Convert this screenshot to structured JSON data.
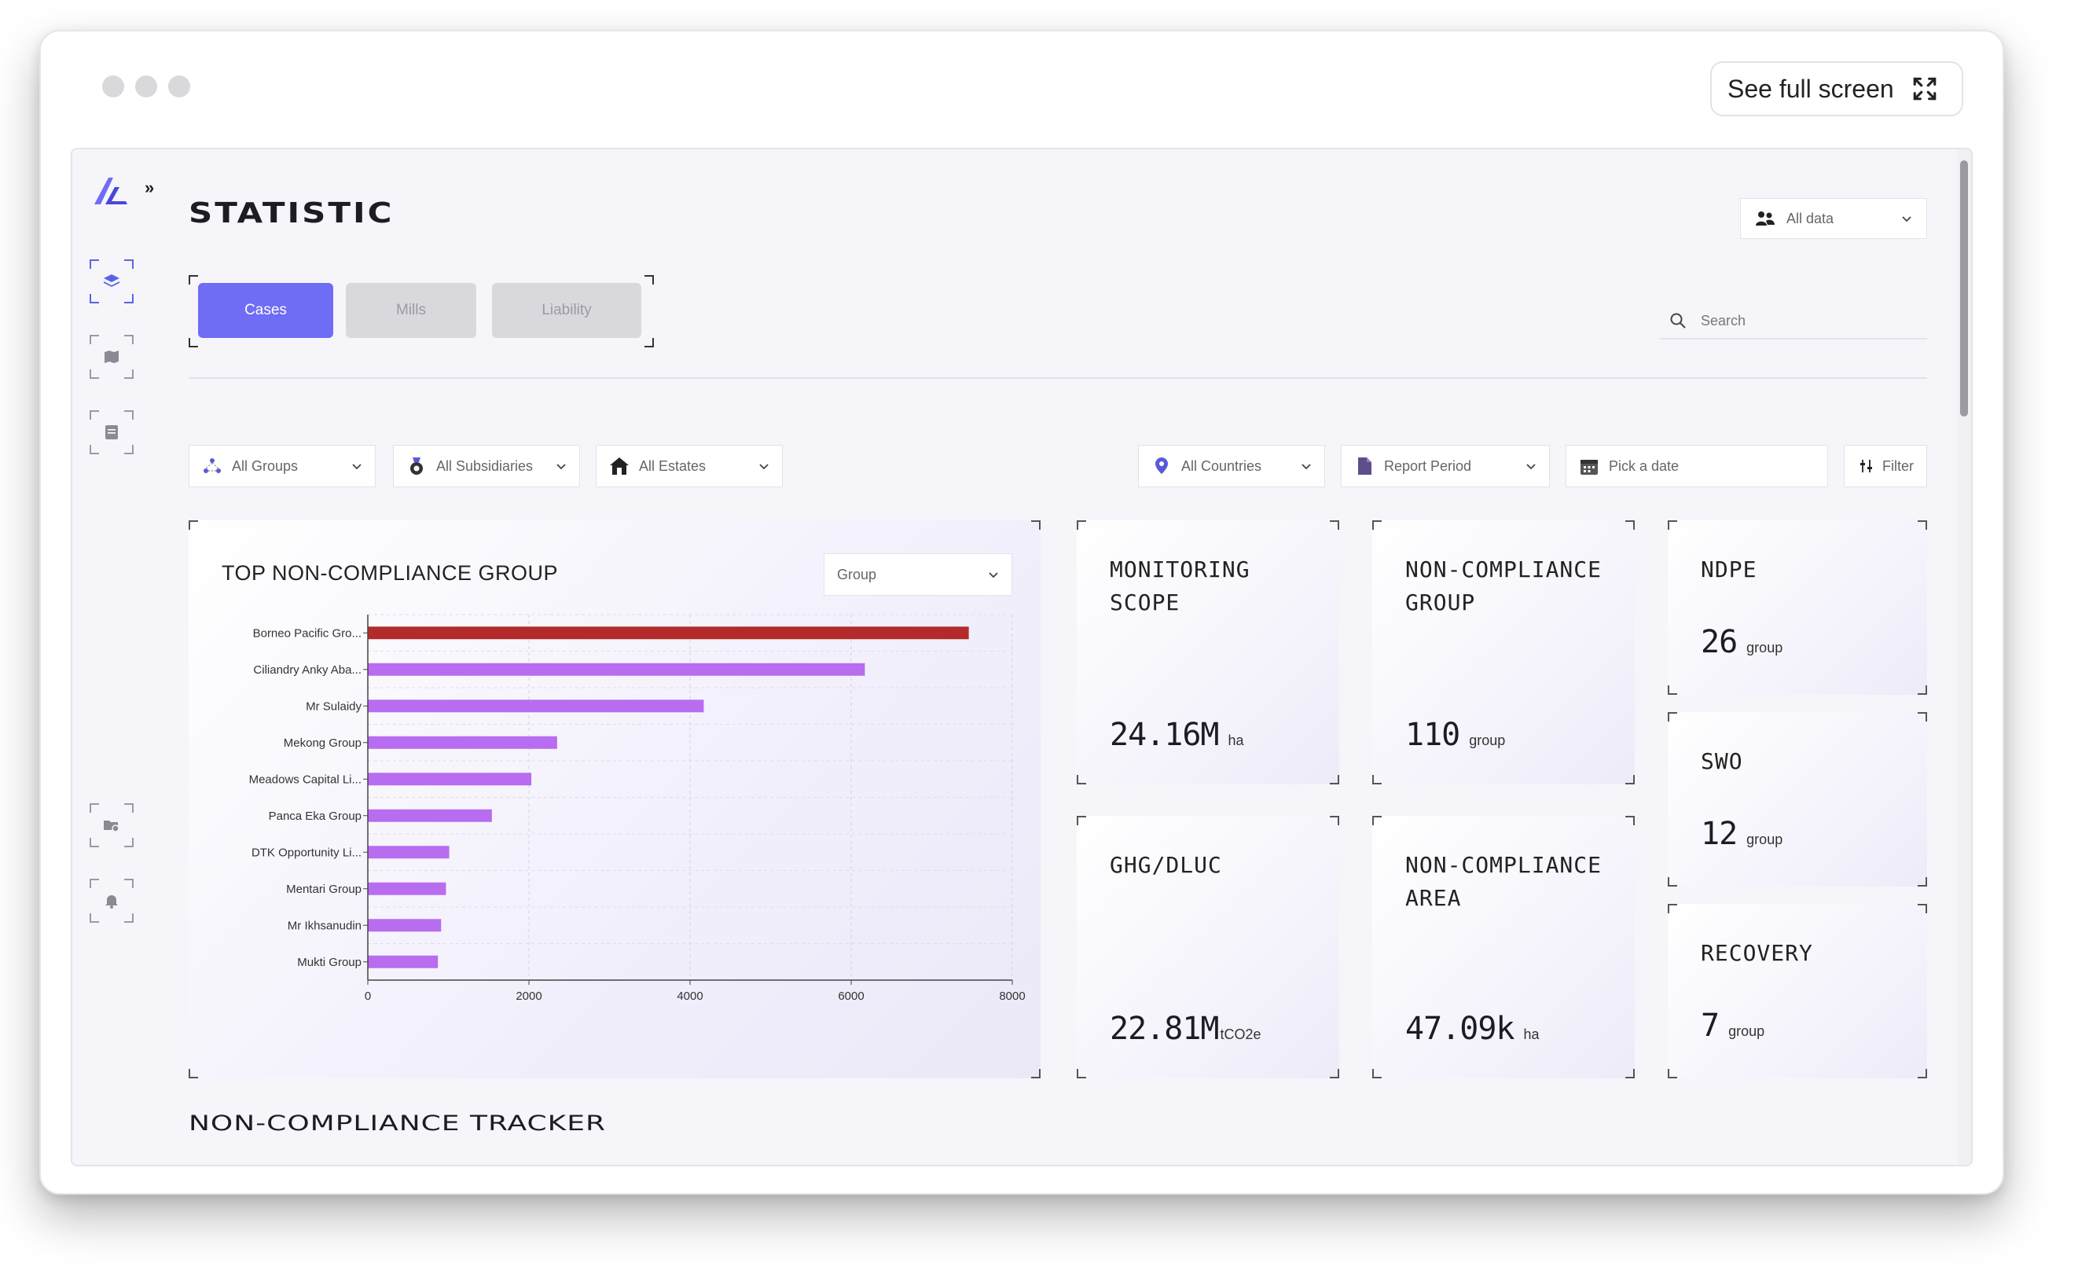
{
  "window": {
    "fullscreen_label": "See full screen"
  },
  "header": {
    "title": "STATISTIC",
    "data_scope": "All data"
  },
  "tabs": [
    {
      "label": "Cases",
      "active": true
    },
    {
      "label": "Mills",
      "active": false
    },
    {
      "label": "Liability",
      "active": false
    }
  ],
  "search": {
    "placeholder": "Search"
  },
  "filters": {
    "groups": "All Groups",
    "subsidiaries": "All Subsidiaries",
    "estates": "All Estates",
    "countries": "All Countries",
    "report_period": "Report Period",
    "date": "Pick a date",
    "filter_button": "Filter"
  },
  "chart_card": {
    "title": "TOP NON-COMPLIANCE GROUP",
    "select_value": "Group"
  },
  "chart_data": {
    "type": "bar",
    "orientation": "horizontal",
    "title": "TOP NON-COMPLIANCE GROUP",
    "categories": [
      "Borneo Pacific Gro...",
      "Ciliandry Anky Aba...",
      "Mr Sulaidy",
      "Mekong Group",
      "Meadows Capital Li...",
      "Panca Eka Group",
      "DTK Opportunity Li...",
      "Mentari Group",
      "Mr Ikhsanudin",
      "Mukti Group"
    ],
    "values": [
      7460,
      6170,
      4170,
      2350,
      2030,
      1540,
      1010,
      970,
      910,
      870
    ],
    "highlight_index": 0,
    "colors": {
      "highlight": "#b22a2a",
      "bar": "#b86cf0"
    },
    "xlim": [
      0,
      8000
    ],
    "xticks": [
      0,
      2000,
      4000,
      6000,
      8000
    ],
    "grid": true
  },
  "stats": {
    "monitoring_scope": {
      "label_l1": "MONITORING",
      "label_l2": "SCOPE",
      "value": "24.16M",
      "unit": "ha"
    },
    "noncompliance_group": {
      "label_l1": "NON-COMPLIANCE",
      "label_l2": "GROUP",
      "value": "110",
      "unit": "group"
    },
    "ndpe": {
      "label": "NDPE",
      "value": "26",
      "unit": "group"
    },
    "ghg_dluc": {
      "label": "GHG/DLUC",
      "value": "22.81M",
      "unit": "tCO2e"
    },
    "noncompliance_area": {
      "label_l1": "NON-COMPLIANCE",
      "label_l2": "AREA",
      "value": "47.09k",
      "unit": "ha"
    },
    "swo": {
      "label": "SWO",
      "value": "12",
      "unit": "group"
    },
    "recovery": {
      "label": "RECOVERY",
      "value": "7",
      "unit": "group"
    }
  },
  "section": {
    "title": "NON-COMPLIANCE TRACKER"
  },
  "colors": {
    "accent": "#6f6cf6",
    "tab_inactive": "#d9d9dd"
  }
}
